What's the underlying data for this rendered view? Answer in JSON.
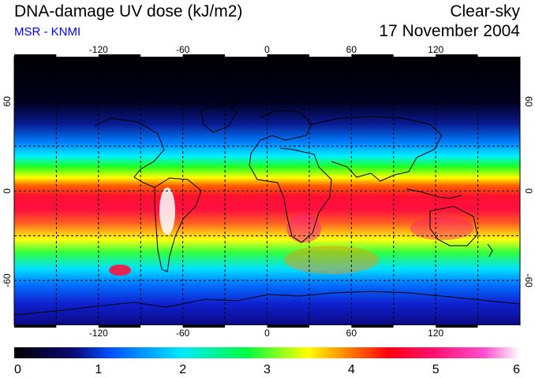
{
  "header": {
    "title": "DNA-damage UV dose (kJ/m2)",
    "subtitle": "MSR - KNMI",
    "condition": "Clear-sky",
    "date": "17 November 2004"
  },
  "colors": {
    "subtitle": "#0000ff",
    "palette": [
      "#000000",
      "#0a0a7a",
      "#0050ff",
      "#00e0ff",
      "#00ff40",
      "#ffff00",
      "#ff8000",
      "#ff0020",
      "#ff2080",
      "#ffffff"
    ]
  },
  "map": {
    "lon_ticks": [
      "-120",
      "-60",
      "0",
      "60",
      "120"
    ],
    "lat_ticks_left": [
      "60",
      "0",
      "-60"
    ],
    "lat_ticks_right": [
      "60",
      "0",
      "-60"
    ],
    "grid_lon": [
      -150,
      -120,
      -90,
      -60,
      -30,
      0,
      30,
      60,
      90,
      120,
      150
    ],
    "grid_lat": [
      60,
      30,
      0,
      -30,
      -60
    ]
  },
  "colorbar": {
    "tick_labels": [
      "0",
      "1",
      "2",
      "3",
      "4",
      "5",
      "6"
    ],
    "min": 0,
    "max": 6
  }
}
